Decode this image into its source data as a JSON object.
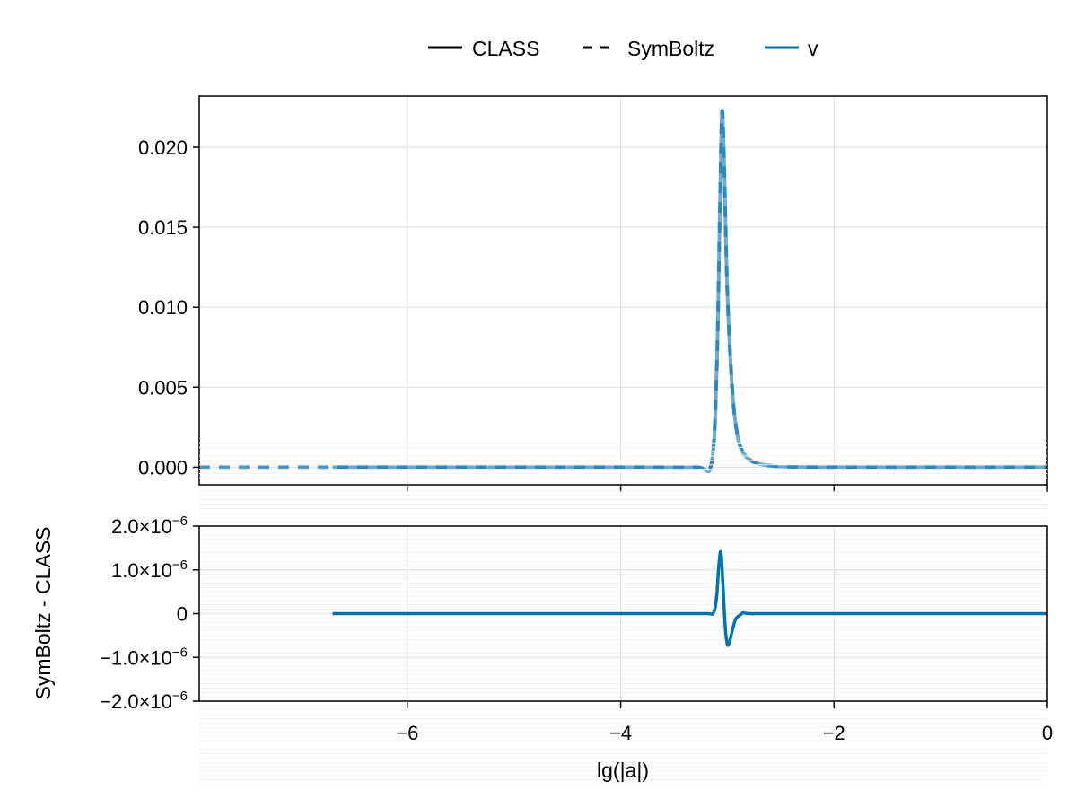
{
  "legend": {
    "position": "top-center",
    "items": [
      {
        "label": "CLASS",
        "style": "solid",
        "color": "#000000"
      },
      {
        "label": "SymBoltz",
        "style": "dashed",
        "color": "#000000"
      },
      {
        "label": "v",
        "style": "solid",
        "color": "#0072b2"
      }
    ]
  },
  "colors": {
    "series": "#0072b2",
    "series_light": "#3a8fc4",
    "grid": "#e3e3e3",
    "minor_grid": "#f3f3f3",
    "axis": "#000000"
  },
  "x_axis": {
    "label": "lg(|a|)",
    "ticks": [
      -6,
      -4,
      -2,
      0
    ],
    "tick_labels": [
      "−6",
      "−4",
      "−2",
      "0"
    ],
    "range": [
      -7.95,
      0
    ]
  },
  "chart_data": [
    {
      "type": "line",
      "panel": "top",
      "title": "",
      "xlabel": "",
      "ylabel": "",
      "ylim": [
        -0.0011,
        0.0232
      ],
      "xlim": [
        -7.95,
        0
      ],
      "grid": true,
      "yticks": [
        0.0,
        0.005,
        0.01,
        0.015,
        0.02
      ],
      "ytick_labels": [
        "0.000",
        "0.005",
        "0.010",
        "0.015",
        "0.020"
      ],
      "series": [
        {
          "name": "v (CLASS)",
          "style": "solid",
          "x": [
            -6.7,
            -4.0,
            -3.3,
            -3.15,
            -3.1,
            -3.07,
            -3.05,
            -3.03,
            -3.0,
            -2.95,
            -2.9,
            -2.85,
            -2.8,
            -2.7,
            -2.5,
            -2.0,
            -1.0,
            0.0
          ],
          "y": [
            0.0,
            0.0,
            0.0,
            0.0002,
            0.006,
            0.016,
            0.0222,
            0.019,
            0.011,
            0.0045,
            0.0018,
            0.0009,
            0.0005,
            0.0002,
            5e-05,
            0.0,
            0.0,
            0.0
          ]
        },
        {
          "name": "v (SymBoltz)",
          "style": "dashed",
          "x": [
            -7.95,
            -6.7,
            -4.0,
            -3.3,
            -3.15,
            -3.1,
            -3.07,
            -3.05,
            -3.03,
            -3.0,
            -2.95,
            -2.9,
            -2.85,
            -2.8,
            -2.7,
            -2.5,
            -2.0,
            -1.0,
            0.0
          ],
          "y": [
            0.0,
            0.0,
            0.0,
            0.0,
            0.0002,
            0.006,
            0.016,
            0.0222,
            0.019,
            0.011,
            0.0045,
            0.0018,
            0.0009,
            0.0005,
            0.0002,
            5e-05,
            0.0,
            0.0,
            0.0
          ]
        }
      ]
    },
    {
      "type": "line",
      "panel": "bottom",
      "title": "",
      "xlabel": "lg(|a|)",
      "ylabel": "SymBoltz - CLASS",
      "ylim": [
        -2e-06,
        2e-06
      ],
      "xlim": [
        -7.95,
        0
      ],
      "grid": true,
      "minor_grid": true,
      "yticks": [
        -2e-06,
        -1e-06,
        0,
        1e-06,
        2e-06
      ],
      "ytick_labels": [
        {
          "mant": "−2.0×10",
          "exp": "−6"
        },
        {
          "mant": "−1.0×10",
          "exp": "−6"
        },
        {
          "mant": "0",
          "exp": ""
        },
        {
          "mant": "1.0×10",
          "exp": "−6"
        },
        {
          "mant": "2.0×10",
          "exp": "−6"
        }
      ],
      "series": [
        {
          "name": "v",
          "style": "solid",
          "x": [
            -6.7,
            -4.0,
            -3.2,
            -3.13,
            -3.1,
            -3.08,
            -3.06,
            -3.04,
            -3.02,
            -3.0,
            -2.98,
            -2.95,
            -2.92,
            -2.88,
            -2.85,
            -2.8,
            -2.5,
            -1.0,
            0.0
          ],
          "y": [
            0,
            0,
            0,
            2e-08,
            4e-07,
            1.1e-06,
            1.4e-06,
            6e-07,
            -3e-07,
            -7e-07,
            -6.5e-07,
            -3.5e-07,
            -1.2e-07,
            -3e-08,
            2e-08,
            0.0,
            0.0,
            0.0,
            0.0
          ]
        }
      ]
    }
  ]
}
